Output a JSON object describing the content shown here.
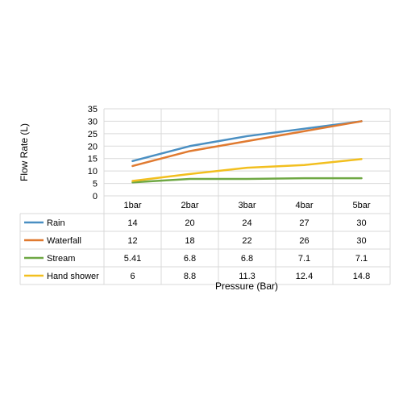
{
  "chart_data": {
    "type": "line",
    "categories": [
      "1bar",
      "2bar",
      "3bar",
      "4bar",
      "5bar"
    ],
    "series": [
      {
        "name": "Rain",
        "color": "#4a8fc2",
        "values": [
          14,
          20,
          24,
          27,
          30
        ],
        "labels": [
          "14",
          "20",
          "24",
          "27",
          "30"
        ]
      },
      {
        "name": "Waterfall",
        "color": "#e07a30",
        "values": [
          12,
          18,
          22,
          26,
          30
        ],
        "labels": [
          "12",
          "18",
          "22",
          "26",
          "30"
        ]
      },
      {
        "name": "Stream",
        "color": "#6fa844",
        "values": [
          5.41,
          6.8,
          6.8,
          7.1,
          7.1
        ],
        "labels": [
          "5.41",
          "6.8",
          "6.8",
          "7.1",
          "7.1"
        ]
      },
      {
        "name": "Hand shower",
        "color": "#f2bf1f",
        "values": [
          6,
          8.8,
          11.3,
          12.4,
          14.8
        ],
        "labels": [
          "6",
          "8.8",
          "11.3",
          "12.4",
          "14.8"
        ]
      }
    ],
    "ylabel": "Flow Rate (L)",
    "xlabel": "Pressure (Bar)",
    "ylim": [
      0,
      35
    ],
    "yticks": [
      0,
      5,
      10,
      15,
      20,
      25,
      30,
      35
    ],
    "ytick_labels": [
      "0",
      "5",
      "10",
      "15",
      "20",
      "25",
      "30",
      "35"
    ],
    "grid": true,
    "legend": "data-table"
  }
}
